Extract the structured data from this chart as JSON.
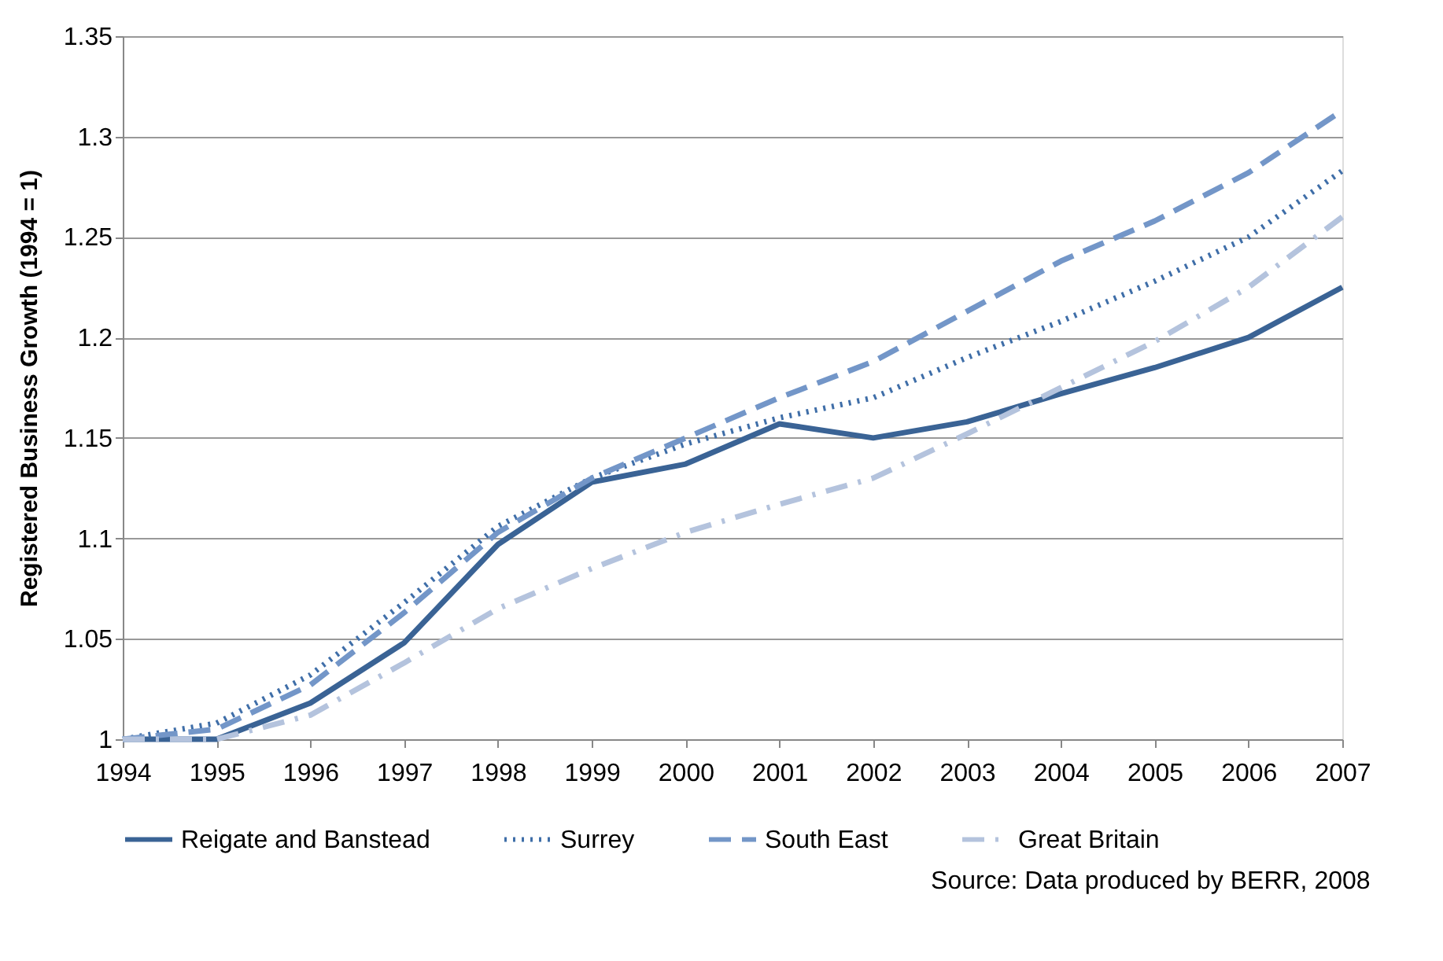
{
  "chart_data": {
    "type": "line",
    "ylabel": "Registered Business Growth (1994 = 1)",
    "x": [
      1994,
      1995,
      1996,
      1997,
      1998,
      1999,
      2000,
      2001,
      2002,
      2003,
      2004,
      2005,
      2006,
      2007
    ],
    "series": [
      {
        "name": "Reigate and Banstead",
        "color": "#3a6395",
        "line_style": "solid",
        "values": [
          1.0,
          1.0,
          1.018,
          1.048,
          1.097,
          1.128,
          1.137,
          1.157,
          1.15,
          1.158,
          1.172,
          1.185,
          1.2,
          1.225
        ]
      },
      {
        "name": "Surrey",
        "color": "#3f6ea8",
        "line_style": "dotted",
        "values": [
          1.0,
          1.008,
          1.032,
          1.068,
          1.106,
          1.13,
          1.147,
          1.16,
          1.17,
          1.19,
          1.208,
          1.228,
          1.25,
          1.283
        ]
      },
      {
        "name": "South East",
        "color": "#7396c8",
        "line_style": "dashed",
        "values": [
          1.0,
          1.005,
          1.027,
          1.063,
          1.103,
          1.13,
          1.15,
          1.17,
          1.188,
          1.213,
          1.238,
          1.258,
          1.282,
          1.313
        ]
      },
      {
        "name": "Great Britain",
        "color": "#b4c3dd",
        "line_style": "dashdot",
        "values": [
          1.0,
          1.0,
          1.012,
          1.038,
          1.065,
          1.085,
          1.103,
          1.117,
          1.13,
          1.152,
          1.175,
          1.198,
          1.225,
          1.26
        ]
      }
    ],
    "xlim": [
      1994,
      2007
    ],
    "xticks": [
      1994,
      1995,
      1996,
      1997,
      1998,
      1999,
      2000,
      2001,
      2002,
      2003,
      2004,
      2005,
      2006,
      2007
    ],
    "ylim": [
      1,
      1.35
    ],
    "yticks": [
      1,
      1.05,
      1.1,
      1.15,
      1.2,
      1.25,
      1.3,
      1.35
    ],
    "grid": "y",
    "legend": "bottom",
    "marker": "none",
    "annotations": [
      "Source: Data produced by BERR, 2008"
    ]
  }
}
